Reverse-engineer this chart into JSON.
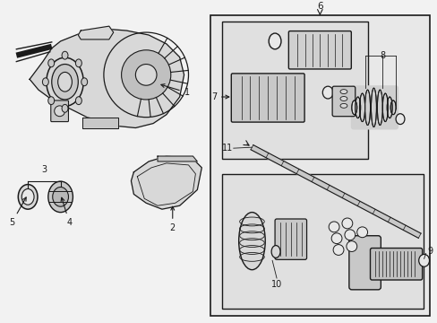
{
  "bg": "#f2f2f2",
  "box_bg": "#e8e8e8",
  "inner_box_bg": "#e0e0e0",
  "lc": "#1a1a1a",
  "part_fill": "#d8d8d8",
  "part_dark": "#a0a0a0",
  "white": "#ffffff",
  "figsize": [
    4.89,
    3.6
  ],
  "dpi": 100
}
